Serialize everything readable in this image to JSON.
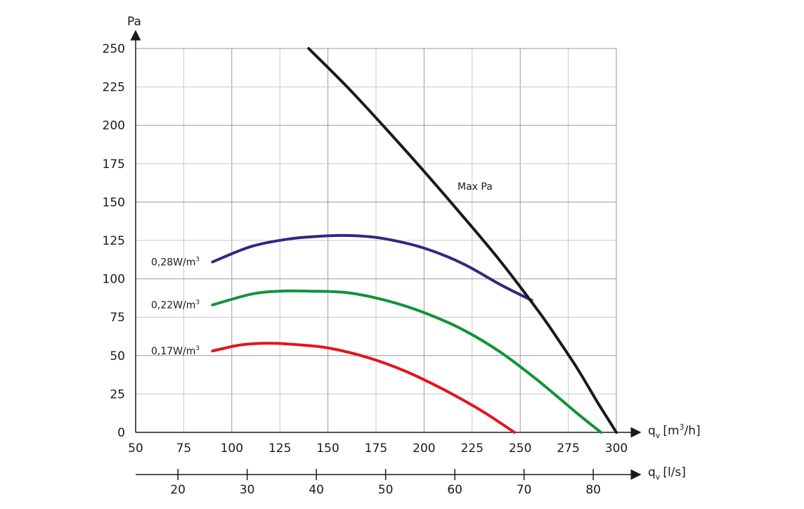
{
  "chart_data": {
    "type": "line",
    "xlim": [
      50,
      300
    ],
    "ylim": [
      0,
      250
    ],
    "x_ticks": [
      50,
      75,
      100,
      125,
      150,
      175,
      200,
      225,
      250,
      275,
      300
    ],
    "y_ticks": [
      0,
      25,
      50,
      75,
      100,
      125,
      150,
      175,
      200,
      225,
      250
    ],
    "ylabel": "Pa",
    "xlabel": {
      "q": "q",
      "sub": "v",
      "unit": "[m",
      "sup": "3",
      "tail": "/h]"
    },
    "x2label": {
      "q": "q",
      "sub": "v",
      "unit": "[l/s]"
    },
    "x2_ticks": [
      20,
      30,
      40,
      50,
      60,
      70,
      80
    ],
    "series": [
      {
        "name": "Max Pa",
        "label_text": "Max Pa",
        "color": "#1a1a1a",
        "x": [
          140,
          160,
          180,
          200,
          220,
          240,
          260,
          270,
          280,
          290,
          295,
          300
        ],
        "y": [
          250,
          225,
          198,
          170,
          141,
          111,
          78,
          60,
          41,
          20,
          10,
          0
        ]
      },
      {
        "name": "0,28W/m3",
        "label_text": "0,28W/m",
        "label_sup": "3",
        "color": "#2e2a7f",
        "x": [
          90,
          110,
          130,
          150,
          165,
          180,
          200,
          220,
          240,
          256
        ],
        "y": [
          111,
          121,
          126,
          128,
          128,
          126,
          120,
          110,
          96,
          86
        ]
      },
      {
        "name": "0,22W/m3",
        "label_text": "0,22W/m",
        "label_sup": "3",
        "color": "#12923a",
        "x": [
          90,
          110,
          125,
          140,
          160,
          180,
          200,
          220,
          240,
          260,
          280,
          292
        ],
        "y": [
          83,
          90,
          92,
          92,
          91,
          86,
          78,
          67,
          52,
          33,
          12,
          0
        ]
      },
      {
        "name": "0,17W/m3",
        "label_text": "0,17W/m",
        "label_sup": "3",
        "color": "#e3141e",
        "x": [
          90,
          105,
          120,
          135,
          150,
          170,
          190,
          210,
          230,
          247
        ],
        "y": [
          53,
          57,
          58,
          57,
          55,
          49,
          40,
          28,
          14,
          0
        ]
      }
    ]
  }
}
